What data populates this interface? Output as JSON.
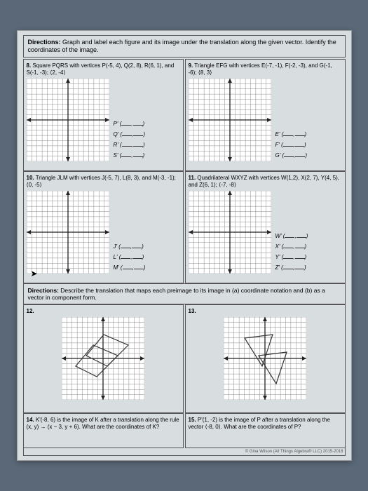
{
  "directions": {
    "label": "Directions:",
    "text": "Graph and label each figure and its image under the translation along the given vector. Identify the coordinates of the image."
  },
  "q8": {
    "num": "8.",
    "text": "Square PQRS with vertices P(-5, 4), Q(2, 8), R(6, 1), and S(-1, -3); ⟨2, -4⟩",
    "pts": [
      "P'",
      "Q'",
      "R'",
      "S'"
    ]
  },
  "q9": {
    "num": "9.",
    "text": "Triangle EFG with vertices E(-7, -1), F(-2, -3), and G(-1, -6); ⟨8, 3⟩",
    "pts": [
      "E'",
      "F'",
      "G'"
    ]
  },
  "q10": {
    "num": "10.",
    "text": "Triangle JLM with vertices J(-5, 7), L(8, 3), and M(-3, -1); ⟨0, -5⟩",
    "pts": [
      "J'",
      "L'",
      "M'"
    ]
  },
  "q11": {
    "num": "11.",
    "text": "Quadrilateral WXYZ with vertices W(1,2), X(2, 7), Y(4, 5), and Z(6, 1); ⟨-7, -8⟩",
    "pts": [
      "W'",
      "X'",
      "Y'",
      "Z'"
    ]
  },
  "section2": {
    "label": "Directions:",
    "text": "Describe the translation that maps each preimage to its image in (a) coordinate notation and (b) as a vector in component form."
  },
  "q12": {
    "num": "12."
  },
  "q13": {
    "num": "13."
  },
  "q14": {
    "num": "14.",
    "text": "K'(-8, 6) is the image of K after a translation along the rule (x, y) → (x − 3, y + 6). What are the coordinates of K?"
  },
  "q15": {
    "num": "15.",
    "text": "P'(1, -2) is the image of P after a translation along the vector ⟨-8, 0⟩. What are the coordinates of P?"
  },
  "footer": "© Gina Wilson (All Things Algebra® LLC) 2015-2018",
  "grid": {
    "size": 118,
    "half": 59,
    "cells": 16,
    "bg": "#ffffff",
    "line": "#888888",
    "axis": "#222222"
  }
}
